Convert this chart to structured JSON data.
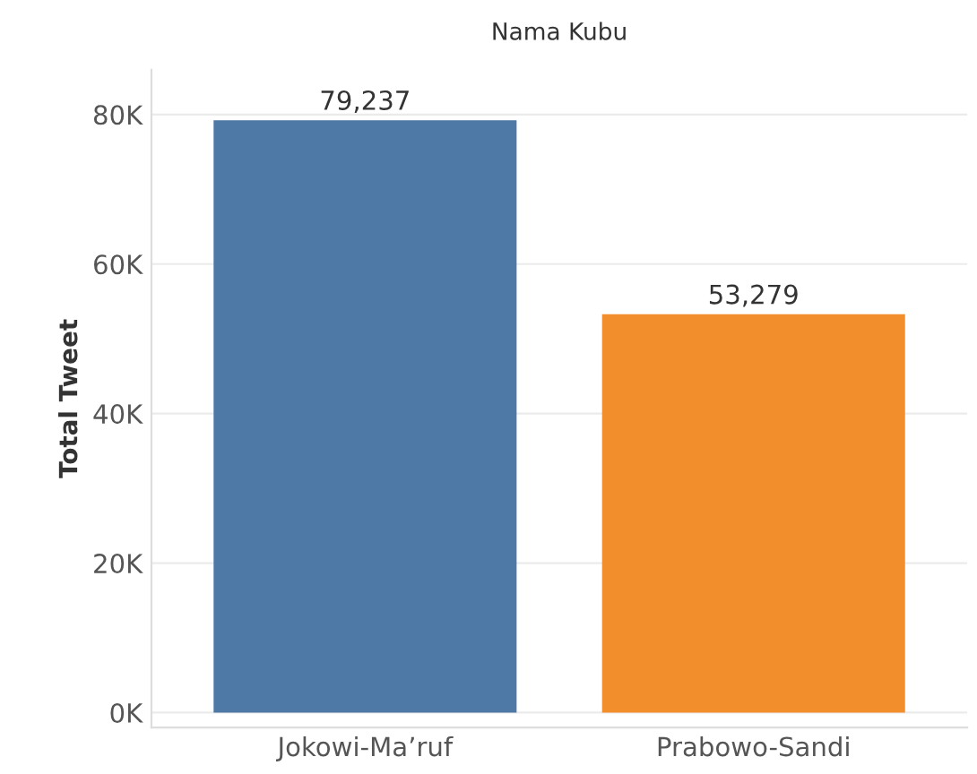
{
  "chart_data": {
    "type": "bar",
    "title": "Nama Kubu",
    "ylabel": "Total Tweet",
    "categories": [
      "Jokowi-Ma’ruf",
      "Prabowo-Sandi"
    ],
    "values": [
      79237,
      53279
    ],
    "colors": [
      "#4e79a7",
      "#f28e2b"
    ],
    "value_labels": [
      "79,237",
      "53,279"
    ],
    "ylim": [
      -2000,
      86000
    ],
    "yticks": [
      {
        "value": 0,
        "label": "0K"
      },
      {
        "value": 20000,
        "label": "20K"
      },
      {
        "value": 40000,
        "label": "40K"
      },
      {
        "value": 60000,
        "label": "60K"
      },
      {
        "value": 80000,
        "label": "80K"
      }
    ],
    "grid": "y",
    "legend": false
  }
}
